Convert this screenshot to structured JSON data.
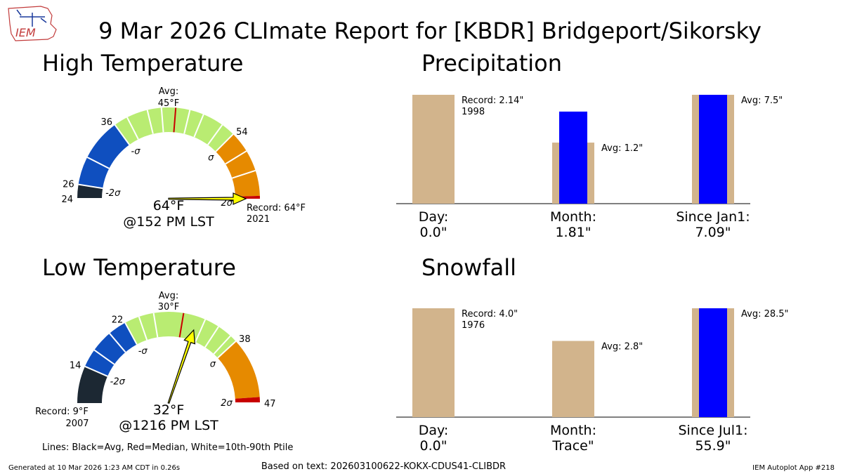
{
  "header": {
    "title": "9 Mar 2026 CLImate Report for [KBDR] Bridgeport/Sikorsky",
    "logo_text": "IEM"
  },
  "footer": {
    "generated": "Generated at 10 Mar 2026 1:23 AM CDT in 0.26s",
    "based_on": "Based on text: 202603100622-KOKX-CDUS41-CLIBDR",
    "app": "IEM Autoplot App #218",
    "lines_legend": "Lines: Black=Avg, Red=Median, White=10th-90th Ptile"
  },
  "colors": {
    "below_2sigma": "#1c2833",
    "below_sigma": "#0f4fbf",
    "normal": "#b9ec72",
    "above_sigma": "#e68a00",
    "above_2sigma": "#c80000",
    "needle": "#ffff00",
    "bar_climo": "#d2b48c",
    "bar_obs": "#0000ff",
    "avg_line": "#c80000"
  },
  "chart_data": [
    {
      "type": "gauge",
      "title": "High Temperature",
      "value_label": "64°F",
      "time_label": "@152 PM LST",
      "avg_label_line1": "Avg:",
      "avg_label_line2": "45°F",
      "range": [
        24,
        64
      ],
      "ticks": [
        {
          "value": 24,
          "label": "24",
          "anchor": "end"
        },
        {
          "value": 26,
          "label": "26",
          "anchor": "end"
        },
        {
          "value": 36,
          "label": "36",
          "anchor": "end"
        },
        {
          "value": 54,
          "label": "54",
          "anchor": "start"
        }
      ],
      "sigma_labels": [
        {
          "value": 26,
          "label": "-2σ"
        },
        {
          "value": 36,
          "label": "-σ"
        },
        {
          "value": 54,
          "label": "σ"
        },
        {
          "value": 64,
          "label": "2σ"
        }
      ],
      "bands": [
        {
          "from": 24,
          "to": 26,
          "color": "below_2sigma"
        },
        {
          "from": 26,
          "to": 36,
          "color": "below_sigma"
        },
        {
          "from": 36,
          "to": 54,
          "color": "normal"
        },
        {
          "from": 54,
          "to": 63.6,
          "color": "above_sigma"
        },
        {
          "from": 63.6,
          "to": 64,
          "color": "above_2sigma"
        }
      ],
      "white_lines": [
        30,
        38,
        41,
        43,
        47,
        49,
        52,
        57,
        60
      ],
      "avg": 45,
      "observed": 64,
      "record_value": 64,
      "record_label": "Record: 64°F",
      "record_year": "2021",
      "record_side": "right"
    },
    {
      "type": "gauge",
      "title": "Low Temperature",
      "value_label": "32°F",
      "time_label": "@1216 PM LST",
      "avg_label_line1": "Avg:",
      "avg_label_line2": "30°F",
      "range": [
        9,
        47
      ],
      "ticks": [
        {
          "value": 14,
          "label": "14",
          "anchor": "end"
        },
        {
          "value": 22,
          "label": "22",
          "anchor": "end"
        },
        {
          "value": 38,
          "label": "38",
          "anchor": "start"
        },
        {
          "value": 47,
          "label": "47",
          "anchor": "start"
        }
      ],
      "sigma_labels": [
        {
          "value": 14,
          "label": "-2σ"
        },
        {
          "value": 22,
          "label": "-σ"
        },
        {
          "value": 38,
          "label": "σ"
        },
        {
          "value": 46.2,
          "label": "2σ"
        }
      ],
      "bands": [
        {
          "from": 9,
          "to": 14,
          "color": "below_2sigma"
        },
        {
          "from": 14,
          "to": 22,
          "color": "below_sigma"
        },
        {
          "from": 22,
          "to": 38,
          "color": "normal"
        },
        {
          "from": 38,
          "to": 46.2,
          "color": "above_sigma"
        },
        {
          "from": 46.2,
          "to": 47,
          "color": "above_2sigma"
        }
      ],
      "white_lines": [
        16.5,
        19.5,
        24,
        26,
        33,
        35,
        37
      ],
      "avg": 30,
      "observed": 32,
      "record_value": 9,
      "record_label": "Record: 9°F",
      "record_year": "2007",
      "record_side": "left"
    },
    {
      "type": "bar",
      "title": "Precipitation",
      "ymax": 2.14,
      "categories": [
        {
          "label": "Day:",
          "value_label": "0.0\"",
          "climo": 2.14,
          "observed": 0.0,
          "annotation": "Record: 2.14\"",
          "annotation2": "1998"
        },
        {
          "label": "Month:",
          "value_label": "1.81\"",
          "climo": 1.2,
          "observed": 1.81,
          "annotation": "Avg: 1.2\"",
          "annotation2": ""
        },
        {
          "label": "Since Jan1:",
          "value_label": "7.09\"",
          "climo": 7.5,
          "observed": 7.09,
          "annotation": "Avg: 7.5\"",
          "annotation2": ""
        }
      ]
    },
    {
      "type": "bar",
      "title": "Snowfall",
      "ymax": 4.0,
      "categories": [
        {
          "label": "Day:",
          "value_label": "0.0\"",
          "climo": 4.0,
          "observed": 0.0,
          "annotation": "Record: 4.0\"",
          "annotation2": "1976"
        },
        {
          "label": "Month:",
          "value_label": "Trace\"",
          "climo": 2.8,
          "observed": 0.0,
          "annotation": "Avg: 2.8\"",
          "annotation2": ""
        },
        {
          "label": "Since Jul1:",
          "value_label": "55.9\"",
          "climo": 28.5,
          "observed": 55.9,
          "annotation": "Avg: 28.5\"",
          "annotation2": ""
        }
      ]
    }
  ]
}
